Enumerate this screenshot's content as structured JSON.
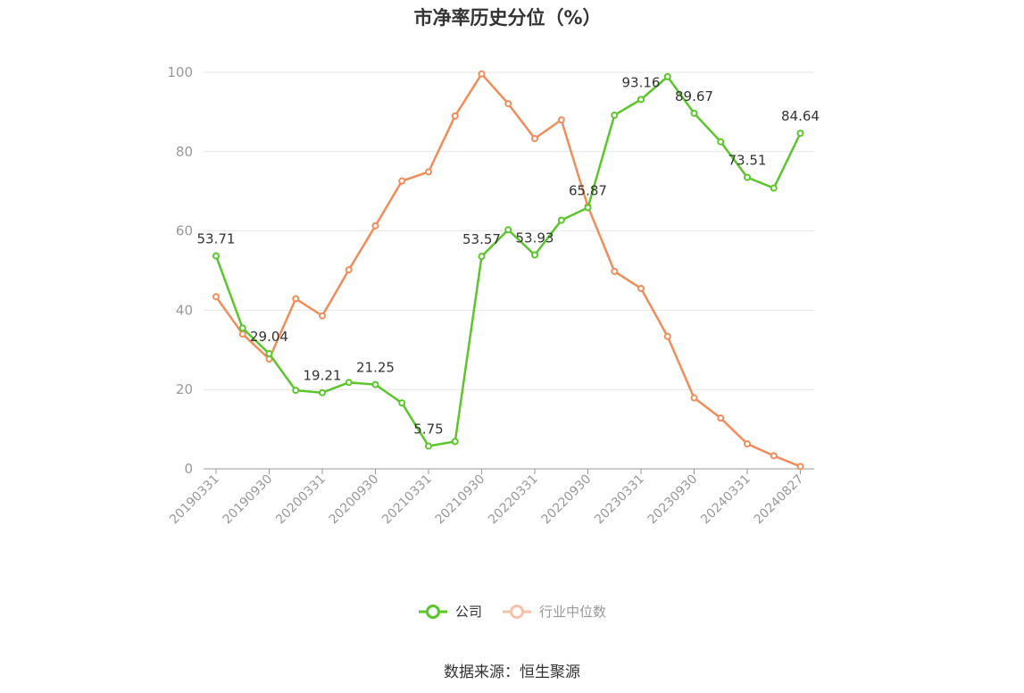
{
  "chart_data": {
    "type": "line",
    "title": "市净率历史分位（%）",
    "xlabel": "",
    "ylabel": "",
    "ylim": [
      0,
      100
    ],
    "yticks": [
      0,
      20,
      40,
      60,
      80,
      100
    ],
    "x_tick_labels": [
      "20190331",
      "20190930",
      "20200331",
      "20200930",
      "20210331",
      "20210930",
      "20220331",
      "20220930",
      "20230331",
      "20230930",
      "20240331",
      "20240827"
    ],
    "x": [
      "20190331",
      "20190630",
      "20190930",
      "20191231",
      "20200331",
      "20200630",
      "20200930",
      "20201231",
      "20210331",
      "20210630",
      "20210930",
      "20211231",
      "20220331",
      "20220630",
      "20220930",
      "20221231",
      "20230331",
      "20230630",
      "20230930",
      "20231231",
      "20240331",
      "20240630",
      "20240827"
    ],
    "grid": true,
    "legend_position": "bottom",
    "series": [
      {
        "name": "公司",
        "color": "#5bc62b",
        "values": [
          53.71,
          35.5,
          29.04,
          19.8,
          19.21,
          21.8,
          21.25,
          16.6,
          5.75,
          6.9,
          53.57,
          60.3,
          53.93,
          62.7,
          65.87,
          89.2,
          93.16,
          98.9,
          89.67,
          82.5,
          73.51,
          70.8,
          84.64
        ],
        "data_labels": [
          {
            "index": 0,
            "text": "53.71"
          },
          {
            "index": 2,
            "text": "29.04"
          },
          {
            "index": 4,
            "text": "19.21"
          },
          {
            "index": 6,
            "text": "21.25"
          },
          {
            "index": 8,
            "text": "5.75"
          },
          {
            "index": 10,
            "text": "53.57"
          },
          {
            "index": 12,
            "text": "53.93"
          },
          {
            "index": 14,
            "text": "65.87"
          },
          {
            "index": 16,
            "text": "93.16"
          },
          {
            "index": 18,
            "text": "89.67"
          },
          {
            "index": 20,
            "text": "73.51"
          },
          {
            "index": 22,
            "text": "84.64"
          }
        ]
      },
      {
        "name": "行业中位数",
        "color": "#f28c5a",
        "values": [
          43.4,
          34.0,
          27.7,
          42.9,
          38.6,
          50.2,
          61.3,
          72.6,
          74.9,
          89.0,
          99.6,
          92.1,
          83.3,
          88.0,
          66.2,
          49.8,
          45.5,
          33.4,
          17.9,
          12.8,
          6.3,
          3.3,
          0.6
        ]
      }
    ]
  },
  "legend": {
    "company": "公司",
    "industry": "行业中位数"
  },
  "source": "数据来源：恒生聚源",
  "colors": {
    "grid": "#e6e6e6",
    "axis": "#999999",
    "tick_text": "#999999",
    "label_text": "#333333",
    "industry_legend_faded": "#f6c2a7"
  }
}
